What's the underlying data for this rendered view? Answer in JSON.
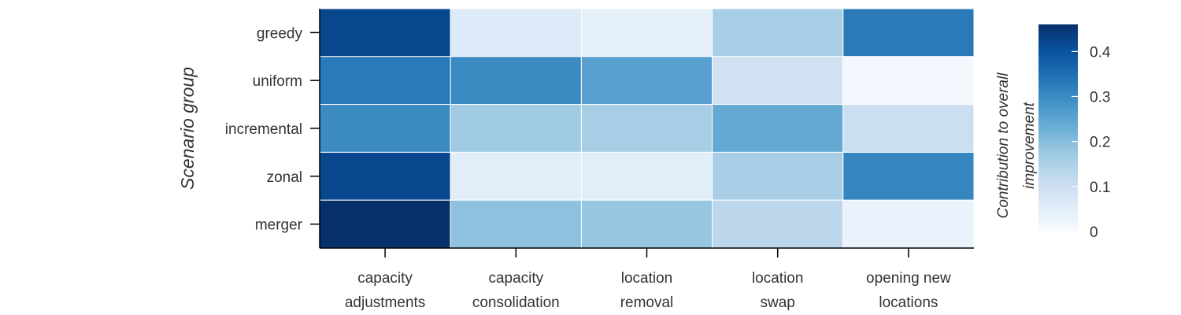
{
  "chart_data": {
    "type": "heatmap",
    "title": "",
    "xlabel": "",
    "ylabel": "Scenario group",
    "x_categories": [
      [
        "capacity",
        "adjustments"
      ],
      [
        "capacity",
        "consolidation"
      ],
      [
        "location",
        "removal"
      ],
      [
        "location",
        "swap"
      ],
      [
        "opening new",
        "locations"
      ]
    ],
    "y_categories": [
      "greedy",
      "uniform",
      "incremental",
      "zonal",
      "merger"
    ],
    "values": [
      [
        0.42,
        0.06,
        0.04,
        0.16,
        0.33
      ],
      [
        0.33,
        0.3,
        0.26,
        0.09,
        0.01
      ],
      [
        0.3,
        0.17,
        0.16,
        0.24,
        0.1
      ],
      [
        0.42,
        0.05,
        0.05,
        0.16,
        0.31
      ],
      [
        0.46,
        0.19,
        0.18,
        0.13,
        0.03
      ]
    ],
    "colorbar": {
      "title": [
        "Contribution to overall",
        "improvement"
      ],
      "range": [
        0,
        0.46
      ],
      "ticks": [
        0,
        0.1,
        0.2,
        0.3,
        0.4
      ],
      "tick_labels": [
        "0",
        "0.1",
        "0.2",
        "0.3",
        "0.4"
      ],
      "colorscale": "Blues"
    }
  }
}
